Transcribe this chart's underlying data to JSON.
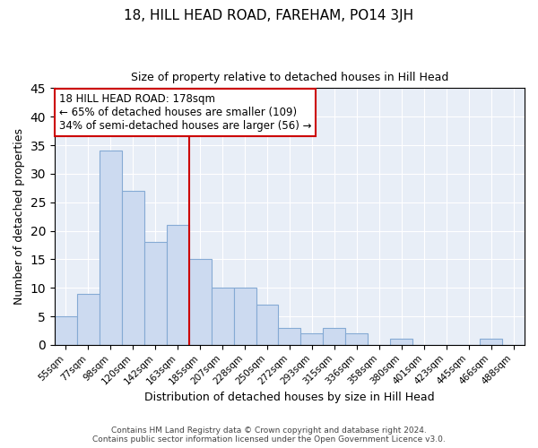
{
  "title": "18, HILL HEAD ROAD, FAREHAM, PO14 3JH",
  "subtitle": "Size of property relative to detached houses in Hill Head",
  "xlabel": "Distribution of detached houses by size in Hill Head",
  "ylabel": "Number of detached properties",
  "categories": [
    "55sqm",
    "77sqm",
    "98sqm",
    "120sqm",
    "142sqm",
    "163sqm",
    "185sqm",
    "207sqm",
    "228sqm",
    "250sqm",
    "272sqm",
    "293sqm",
    "315sqm",
    "336sqm",
    "358sqm",
    "380sqm",
    "401sqm",
    "423sqm",
    "445sqm",
    "466sqm",
    "488sqm"
  ],
  "values": [
    5,
    9,
    34,
    27,
    18,
    21,
    15,
    10,
    10,
    7,
    3,
    2,
    3,
    2,
    0,
    1,
    0,
    0,
    0,
    1,
    0
  ],
  "bar_color": "#ccdaf0",
  "bar_edge_color": "#85aad4",
  "vline_color": "#cc0000",
  "vline_index": 6,
  "annotation_text": "18 HILL HEAD ROAD: 178sqm\n← 65% of detached houses are smaller (109)\n34% of semi-detached houses are larger (56) →",
  "annotation_box_color": "#ffffff",
  "annotation_box_edge_color": "#cc0000",
  "ylim": [
    0,
    45
  ],
  "yticks": [
    0,
    5,
    10,
    15,
    20,
    25,
    30,
    35,
    40,
    45
  ],
  "bg_color": "#e8eef7",
  "fig_bg_color": "#ffffff",
  "footer": "Contains HM Land Registry data © Crown copyright and database right 2024.\nContains public sector information licensed under the Open Government Licence v3.0.",
  "title_fontsize": 11,
  "subtitle_fontsize": 9,
  "ylabel_fontsize": 9,
  "xlabel_fontsize": 9,
  "tick_fontsize": 7.5,
  "footer_fontsize": 6.5,
  "annotation_fontsize": 8.5
}
